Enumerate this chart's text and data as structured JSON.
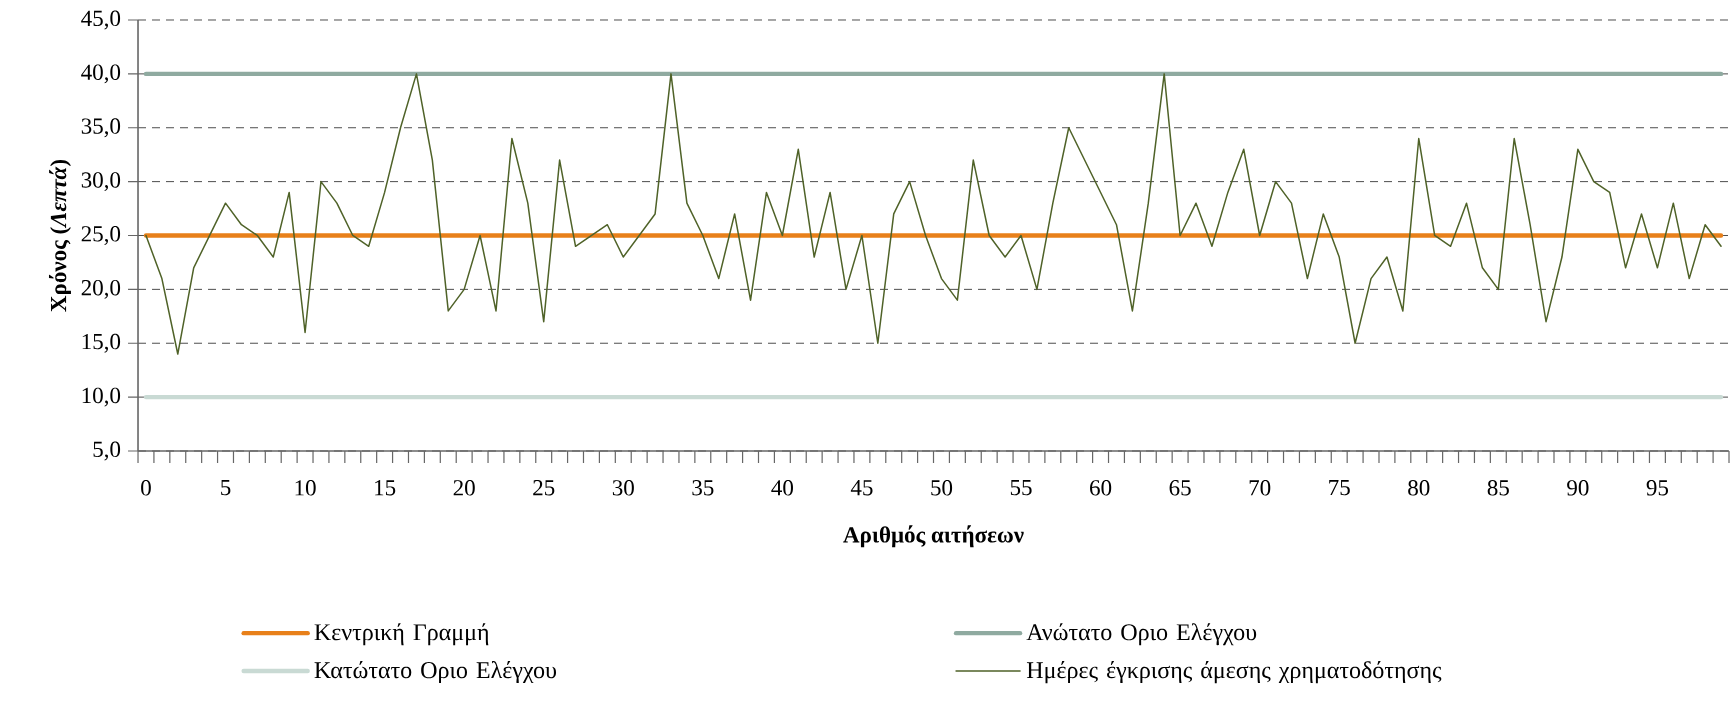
{
  "chart_data": {
    "type": "line",
    "xlabel": "Αριθμός αιτήσεων",
    "ylabel": "Χρόνος (*Λεπτά*)",
    "categories": [
      "0",
      null,
      null,
      null,
      null,
      "5",
      null,
      null,
      null,
      null,
      "10",
      null,
      null,
      null,
      null,
      "15",
      null,
      null,
      null,
      null,
      "20",
      null,
      null,
      null,
      null,
      "25",
      null,
      null,
      null,
      null,
      "30",
      null,
      null,
      null,
      null,
      "35",
      null,
      null,
      null,
      null,
      "40",
      null,
      null,
      null,
      null,
      "45",
      null,
      null,
      null,
      null,
      "50",
      null,
      null,
      null,
      null,
      "55",
      null,
      null,
      null,
      null,
      "60",
      null,
      null,
      null,
      null,
      "65",
      null,
      null,
      null,
      null,
      "70",
      null,
      null,
      null,
      null,
      "75",
      null,
      null,
      null,
      null,
      "80",
      null,
      null,
      null,
      null,
      "85",
      null,
      null,
      null,
      null,
      "90",
      null,
      null,
      null,
      null,
      "95",
      null,
      null,
      null,
      null
    ],
    "series": [
      {
        "name": "Κεντρική Γραμμή",
        "color": "#e8801a",
        "values": [
          25,
          25,
          25,
          25,
          25,
          25,
          25,
          25,
          25,
          25,
          25,
          25,
          25,
          25,
          25,
          25,
          25,
          25,
          25,
          25,
          25,
          25,
          25,
          25,
          25,
          25,
          25,
          25,
          25,
          25,
          25,
          25,
          25,
          25,
          25,
          25,
          25,
          25,
          25,
          25,
          25,
          25,
          25,
          25,
          25,
          25,
          25,
          25,
          25,
          25,
          25,
          25,
          25,
          25,
          25,
          25,
          25,
          25,
          25,
          25,
          25,
          25,
          25,
          25,
          25,
          25,
          25,
          25,
          25,
          25,
          25,
          25,
          25,
          25,
          25,
          25,
          25,
          25,
          25,
          25,
          25,
          25,
          25,
          25,
          25,
          25,
          25,
          25,
          25,
          25,
          25,
          25,
          25,
          25,
          25,
          25,
          25,
          25,
          25,
          25
        ]
      },
      {
        "name": "Ανώτατο Οριο Ελέγχου",
        "color": "#8faaa0",
        "values": [
          40,
          40,
          40,
          40,
          40,
          40,
          40,
          40,
          40,
          40,
          40,
          40,
          40,
          40,
          40,
          40,
          40,
          40,
          40,
          40,
          40,
          40,
          40,
          40,
          40,
          40,
          40,
          40,
          40,
          40,
          40,
          40,
          40,
          40,
          40,
          40,
          40,
          40,
          40,
          40,
          40,
          40,
          40,
          40,
          40,
          40,
          40,
          40,
          40,
          40,
          40,
          40,
          40,
          40,
          40,
          40,
          40,
          40,
          40,
          40,
          40,
          40,
          40,
          40,
          40,
          40,
          40,
          40,
          40,
          40,
          40,
          40,
          40,
          40,
          40,
          40,
          40,
          40,
          40,
          40,
          40,
          40,
          40,
          40,
          40,
          40,
          40,
          40,
          40,
          40,
          40,
          40,
          40,
          40,
          40,
          40,
          40,
          40,
          40,
          40
        ]
      },
      {
        "name": "Κατώτατο Οριο Ελέγχου",
        "color": "#c9dad4",
        "values": [
          10,
          10,
          10,
          10,
          10,
          10,
          10,
          10,
          10,
          10,
          10,
          10,
          10,
          10,
          10,
          10,
          10,
          10,
          10,
          10,
          10,
          10,
          10,
          10,
          10,
          10,
          10,
          10,
          10,
          10,
          10,
          10,
          10,
          10,
          10,
          10,
          10,
          10,
          10,
          10,
          10,
          10,
          10,
          10,
          10,
          10,
          10,
          10,
          10,
          10,
          10,
          10,
          10,
          10,
          10,
          10,
          10,
          10,
          10,
          10,
          10,
          10,
          10,
          10,
          10,
          10,
          10,
          10,
          10,
          10,
          10,
          10,
          10,
          10,
          10,
          10,
          10,
          10,
          10,
          10,
          10,
          10,
          10,
          10,
          10,
          10,
          10,
          10,
          10,
          10,
          10,
          10,
          10,
          10,
          10,
          10,
          10,
          10,
          10,
          10
        ]
      },
      {
        "name": "Ημέρες έγκρισης άμεσης χρηματοδότησης",
        "color": "#4f6228",
        "values": [
          25,
          21,
          14,
          22,
          25,
          28,
          26,
          25,
          23,
          29,
          16,
          30,
          28,
          25,
          24,
          29,
          35,
          40,
          32,
          18,
          20,
          25,
          18,
          34,
          28,
          17,
          32,
          24,
          25,
          26,
          23,
          25,
          27,
          40,
          28,
          25,
          21,
          27,
          19,
          29,
          25,
          33,
          23,
          29,
          20,
          25,
          15,
          27,
          30,
          25,
          21,
          19,
          32,
          25,
          23,
          25,
          20,
          28,
          35,
          32,
          29,
          26,
          18,
          28,
          40,
          25,
          28,
          24,
          29,
          33,
          25,
          30,
          28,
          21,
          27,
          23,
          15,
          21,
          23,
          18,
          34,
          25,
          24,
          28,
          22,
          20,
          34,
          26,
          17,
          23,
          33,
          30,
          29,
          22,
          27,
          22,
          28,
          21,
          26,
          24
        ]
      }
    ],
    "ylim": [
      5,
      45
    ],
    "yticks": [
      {
        "value": 5,
        "label": "5,0"
      },
      {
        "value": 10,
        "label": "10,0"
      },
      {
        "value": 15,
        "label": "15,0"
      },
      {
        "value": 20,
        "label": "20,0"
      },
      {
        "value": 25,
        "label": "25,0"
      },
      {
        "value": 30,
        "label": "30,0"
      },
      {
        "value": 35,
        "label": "35,0"
      },
      {
        "value": 40,
        "label": "40,0"
      },
      {
        "value": 45,
        "label": "45,0"
      }
    ],
    "grid": "y",
    "legend": "bottom"
  }
}
